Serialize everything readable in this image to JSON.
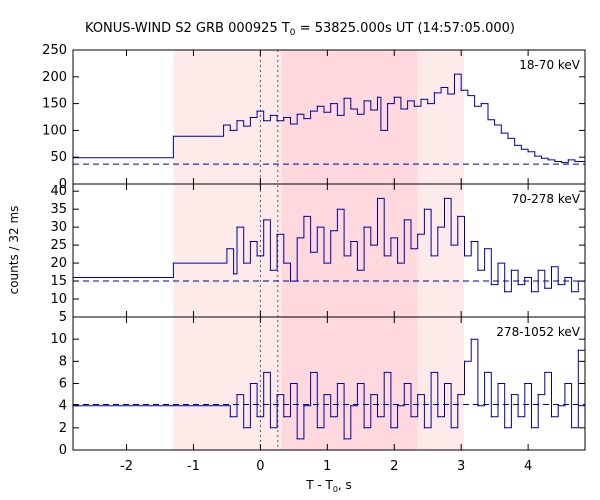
{
  "chart_data": {
    "type": "line",
    "title": {
      "main": "KONUS-WIND S2 GRB 000925 T",
      "sub": "0",
      "rest": " = 53825.000s UT (14:57:05.000)"
    },
    "xlabel": {
      "main": "T - T",
      "sub": "0",
      "rest": ", s"
    },
    "ylabel": "counts / 32 ms",
    "xlim": [
      -2.8,
      4.85
    ],
    "x_ticks": [
      -2,
      -1,
      0,
      1,
      2,
      3,
      4
    ],
    "x_tick_labels": [
      "-2",
      "-1",
      "0",
      "1",
      "2",
      "3",
      "4"
    ],
    "shaded_regions": [
      {
        "x": [
          -1.3,
          3.04
        ],
        "color": "#ffeaea"
      },
      {
        "x": [
          0.32,
          2.35
        ],
        "color": "#ffd9de"
      }
    ],
    "vlines": [
      0.0,
      0.26
    ],
    "colors": {
      "line": "#0000a0",
      "background_dashed": "#0000a0",
      "frame": "#000000"
    },
    "panels": [
      {
        "label": "18-70 keV",
        "ylim": [
          0,
          250
        ],
        "y_ticks": [
          0,
          50,
          100,
          150,
          200,
          250
        ],
        "y_tick_labels": [
          "0",
          "50",
          "100",
          "150",
          "200",
          "250"
        ],
        "background": 37,
        "series": [
          {
            "x": -2.8,
            "y": 49
          },
          {
            "x": -1.3,
            "y": 89
          },
          {
            "x": -0.55,
            "y": 110
          },
          {
            "x": -0.45,
            "y": 100
          },
          {
            "x": -0.35,
            "y": 118
          },
          {
            "x": -0.25,
            "y": 108
          },
          {
            "x": -0.15,
            "y": 124
          },
          {
            "x": -0.05,
            "y": 136
          },
          {
            "x": 0.05,
            "y": 118
          },
          {
            "x": 0.15,
            "y": 128
          },
          {
            "x": 0.25,
            "y": 118
          },
          {
            "x": 0.35,
            "y": 124
          },
          {
            "x": 0.45,
            "y": 112
          },
          {
            "x": 0.55,
            "y": 130
          },
          {
            "x": 0.65,
            "y": 122
          },
          {
            "x": 0.75,
            "y": 136
          },
          {
            "x": 0.85,
            "y": 145
          },
          {
            "x": 0.95,
            "y": 134
          },
          {
            "x": 1.05,
            "y": 150
          },
          {
            "x": 1.15,
            "y": 128
          },
          {
            "x": 1.25,
            "y": 160
          },
          {
            "x": 1.35,
            "y": 140
          },
          {
            "x": 1.45,
            "y": 130
          },
          {
            "x": 1.55,
            "y": 155
          },
          {
            "x": 1.65,
            "y": 138
          },
          {
            "x": 1.75,
            "y": 162
          },
          {
            "x": 1.8,
            "y": 100
          },
          {
            "x": 1.9,
            "y": 150
          },
          {
            "x": 2.0,
            "y": 162
          },
          {
            "x": 2.1,
            "y": 140
          },
          {
            "x": 2.2,
            "y": 155
          },
          {
            "x": 2.3,
            "y": 145
          },
          {
            "x": 2.4,
            "y": 158
          },
          {
            "x": 2.5,
            "y": 150
          },
          {
            "x": 2.6,
            "y": 170
          },
          {
            "x": 2.7,
            "y": 180
          },
          {
            "x": 2.8,
            "y": 168
          },
          {
            "x": 2.9,
            "y": 205
          },
          {
            "x": 3.0,
            "y": 175
          },
          {
            "x": 3.1,
            "y": 165
          },
          {
            "x": 3.2,
            "y": 145
          },
          {
            "x": 3.3,
            "y": 150
          },
          {
            "x": 3.4,
            "y": 120
          },
          {
            "x": 3.5,
            "y": 110
          },
          {
            "x": 3.6,
            "y": 95
          },
          {
            "x": 3.7,
            "y": 85
          },
          {
            "x": 3.8,
            "y": 72
          },
          {
            "x": 3.9,
            "y": 65
          },
          {
            "x": 4.0,
            "y": 60
          },
          {
            "x": 4.1,
            "y": 52
          },
          {
            "x": 4.2,
            "y": 48
          },
          {
            "x": 4.3,
            "y": 45
          },
          {
            "x": 4.4,
            "y": 42
          },
          {
            "x": 4.5,
            "y": 40
          },
          {
            "x": 4.6,
            "y": 45
          },
          {
            "x": 4.7,
            "y": 42
          },
          {
            "x": 4.85,
            "y": 45
          }
        ]
      },
      {
        "label": "70-278 keV",
        "ylim": [
          5,
          42
        ],
        "y_ticks": [
          5,
          10,
          15,
          20,
          25,
          30,
          35,
          40
        ],
        "y_tick_labels": [
          "5",
          "10",
          "15",
          "20",
          "25",
          "30",
          "35",
          "40"
        ],
        "background": 15,
        "series": [
          {
            "x": -2.8,
            "y": 16
          },
          {
            "x": -1.3,
            "y": 20
          },
          {
            "x": -0.5,
            "y": 24
          },
          {
            "x": -0.4,
            "y": 17
          },
          {
            "x": -0.35,
            "y": 30
          },
          {
            "x": -0.25,
            "y": 20
          },
          {
            "x": -0.15,
            "y": 26
          },
          {
            "x": -0.05,
            "y": 22
          },
          {
            "x": 0.05,
            "y": 32
          },
          {
            "x": 0.15,
            "y": 18
          },
          {
            "x": 0.25,
            "y": 28
          },
          {
            "x": 0.35,
            "y": 20
          },
          {
            "x": 0.45,
            "y": 15
          },
          {
            "x": 0.55,
            "y": 27
          },
          {
            "x": 0.65,
            "y": 33
          },
          {
            "x": 0.75,
            "y": 23
          },
          {
            "x": 0.85,
            "y": 30
          },
          {
            "x": 0.95,
            "y": 20
          },
          {
            "x": 1.05,
            "y": 29
          },
          {
            "x": 1.15,
            "y": 35
          },
          {
            "x": 1.25,
            "y": 22
          },
          {
            "x": 1.35,
            "y": 26
          },
          {
            "x": 1.45,
            "y": 18
          },
          {
            "x": 1.55,
            "y": 30
          },
          {
            "x": 1.65,
            "y": 25
          },
          {
            "x": 1.75,
            "y": 38
          },
          {
            "x": 1.85,
            "y": 22
          },
          {
            "x": 1.95,
            "y": 27
          },
          {
            "x": 2.05,
            "y": 20
          },
          {
            "x": 2.15,
            "y": 32
          },
          {
            "x": 2.25,
            "y": 24
          },
          {
            "x": 2.35,
            "y": 28
          },
          {
            "x": 2.45,
            "y": 35
          },
          {
            "x": 2.55,
            "y": 22
          },
          {
            "x": 2.65,
            "y": 30
          },
          {
            "x": 2.75,
            "y": 38
          },
          {
            "x": 2.85,
            "y": 25
          },
          {
            "x": 2.95,
            "y": 33
          },
          {
            "x": 3.05,
            "y": 22
          },
          {
            "x": 3.15,
            "y": 26
          },
          {
            "x": 3.25,
            "y": 18
          },
          {
            "x": 3.35,
            "y": 24
          },
          {
            "x": 3.45,
            "y": 14
          },
          {
            "x": 3.55,
            "y": 20
          },
          {
            "x": 3.65,
            "y": 12
          },
          {
            "x": 3.75,
            "y": 18
          },
          {
            "x": 3.85,
            "y": 14
          },
          {
            "x": 3.95,
            "y": 16
          },
          {
            "x": 4.05,
            "y": 12
          },
          {
            "x": 4.15,
            "y": 18
          },
          {
            "x": 4.25,
            "y": 13
          },
          {
            "x": 4.35,
            "y": 19
          },
          {
            "x": 4.45,
            "y": 14
          },
          {
            "x": 4.55,
            "y": 16
          },
          {
            "x": 4.65,
            "y": 12
          },
          {
            "x": 4.75,
            "y": 15
          },
          {
            "x": 4.85,
            "y": 15
          }
        ]
      },
      {
        "label": "278-1052 keV",
        "ylim": [
          0,
          12
        ],
        "y_ticks": [
          0,
          2,
          4,
          6,
          8,
          10
        ],
        "y_tick_labels": [
          "0",
          "2",
          "4",
          "6",
          "8",
          "10"
        ],
        "background": 4.1,
        "series": [
          {
            "x": -2.8,
            "y": 4
          },
          {
            "x": -1.3,
            "y": 4
          },
          {
            "x": -0.45,
            "y": 3
          },
          {
            "x": -0.35,
            "y": 5
          },
          {
            "x": -0.25,
            "y": 2
          },
          {
            "x": -0.15,
            "y": 6
          },
          {
            "x": -0.05,
            "y": 3
          },
          {
            "x": 0.05,
            "y": 7
          },
          {
            "x": 0.15,
            "y": 2
          },
          {
            "x": 0.25,
            "y": 5
          },
          {
            "x": 0.35,
            "y": 3
          },
          {
            "x": 0.45,
            "y": 6
          },
          {
            "x": 0.55,
            "y": 1
          },
          {
            "x": 0.65,
            "y": 4
          },
          {
            "x": 0.75,
            "y": 7
          },
          {
            "x": 0.85,
            "y": 2
          },
          {
            "x": 0.95,
            "y": 5
          },
          {
            "x": 1.05,
            "y": 3
          },
          {
            "x": 1.15,
            "y": 6
          },
          {
            "x": 1.25,
            "y": 1
          },
          {
            "x": 1.35,
            "y": 4
          },
          {
            "x": 1.45,
            "y": 6
          },
          {
            "x": 1.55,
            "y": 2
          },
          {
            "x": 1.65,
            "y": 5
          },
          {
            "x": 1.75,
            "y": 3
          },
          {
            "x": 1.85,
            "y": 7
          },
          {
            "x": 1.95,
            "y": 2
          },
          {
            "x": 2.05,
            "y": 4
          },
          {
            "x": 2.15,
            "y": 6
          },
          {
            "x": 2.25,
            "y": 3
          },
          {
            "x": 2.35,
            "y": 5
          },
          {
            "x": 2.45,
            "y": 2
          },
          {
            "x": 2.55,
            "y": 7
          },
          {
            "x": 2.65,
            "y": 3
          },
          {
            "x": 2.75,
            "y": 6
          },
          {
            "x": 2.85,
            "y": 2
          },
          {
            "x": 2.95,
            "y": 5
          },
          {
            "x": 3.05,
            "y": 8
          },
          {
            "x": 3.15,
            "y": 10
          },
          {
            "x": 3.25,
            "y": 4
          },
          {
            "x": 3.35,
            "y": 7
          },
          {
            "x": 3.45,
            "y": 3
          },
          {
            "x": 3.55,
            "y": 6
          },
          {
            "x": 3.65,
            "y": 2
          },
          {
            "x": 3.75,
            "y": 5
          },
          {
            "x": 3.85,
            "y": 3
          },
          {
            "x": 3.95,
            "y": 6
          },
          {
            "x": 4.05,
            "y": 2
          },
          {
            "x": 4.15,
            "y": 5
          },
          {
            "x": 4.25,
            "y": 7
          },
          {
            "x": 4.35,
            "y": 3
          },
          {
            "x": 4.45,
            "y": 4
          },
          {
            "x": 4.55,
            "y": 6
          },
          {
            "x": 4.65,
            "y": 2
          },
          {
            "x": 4.75,
            "y": 9
          },
          {
            "x": 4.85,
            "y": 6
          }
        ]
      }
    ]
  }
}
